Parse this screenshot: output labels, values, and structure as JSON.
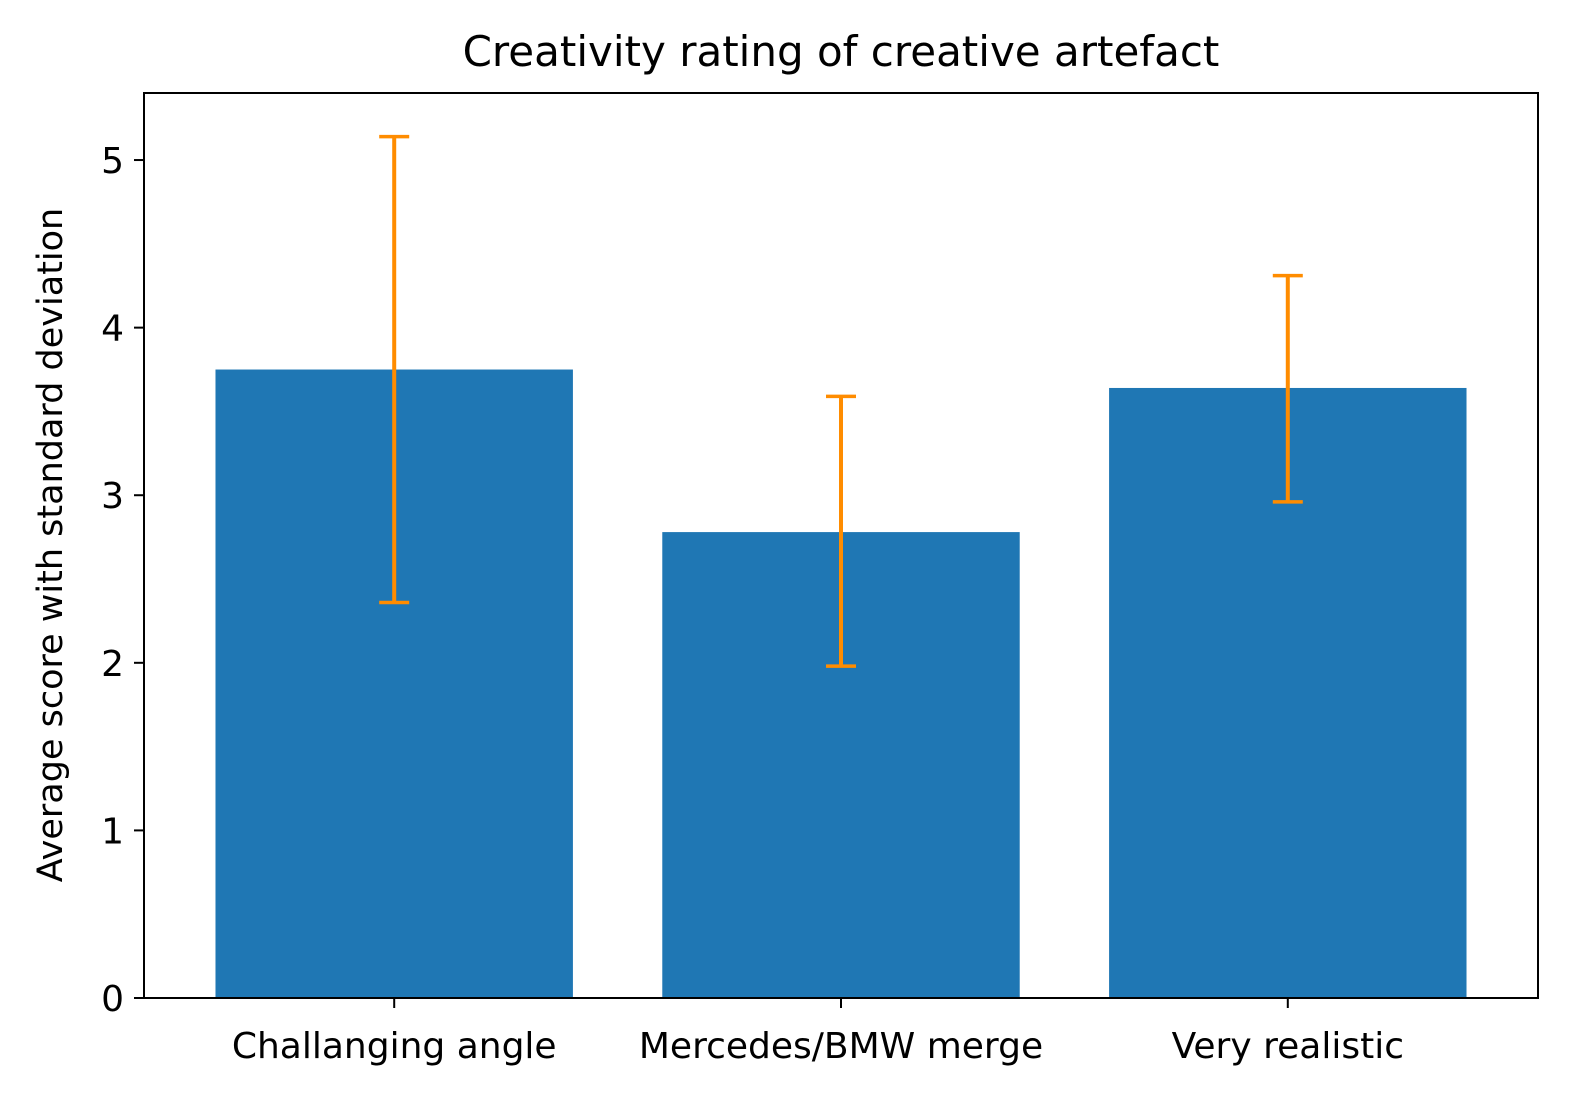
{
  "chart_data": {
    "type": "bar",
    "title": "Creativity rating of creative artefact",
    "xlabel": "",
    "ylabel": "Average score with standard deviation",
    "categories": [
      "Challanging angle",
      "Mercedes/BMW merge",
      "Very realistic"
    ],
    "values": [
      3.75,
      2.78,
      3.64
    ],
    "error_low": [
      2.36,
      1.98,
      2.96
    ],
    "error_high": [
      5.14,
      3.59,
      4.31
    ],
    "ylim": [
      0,
      5.4
    ],
    "yticks": [
      0,
      1,
      2,
      3,
      4,
      5
    ],
    "grid": false,
    "bar_color": "#1f77b4",
    "error_color": "#ff8c00"
  }
}
